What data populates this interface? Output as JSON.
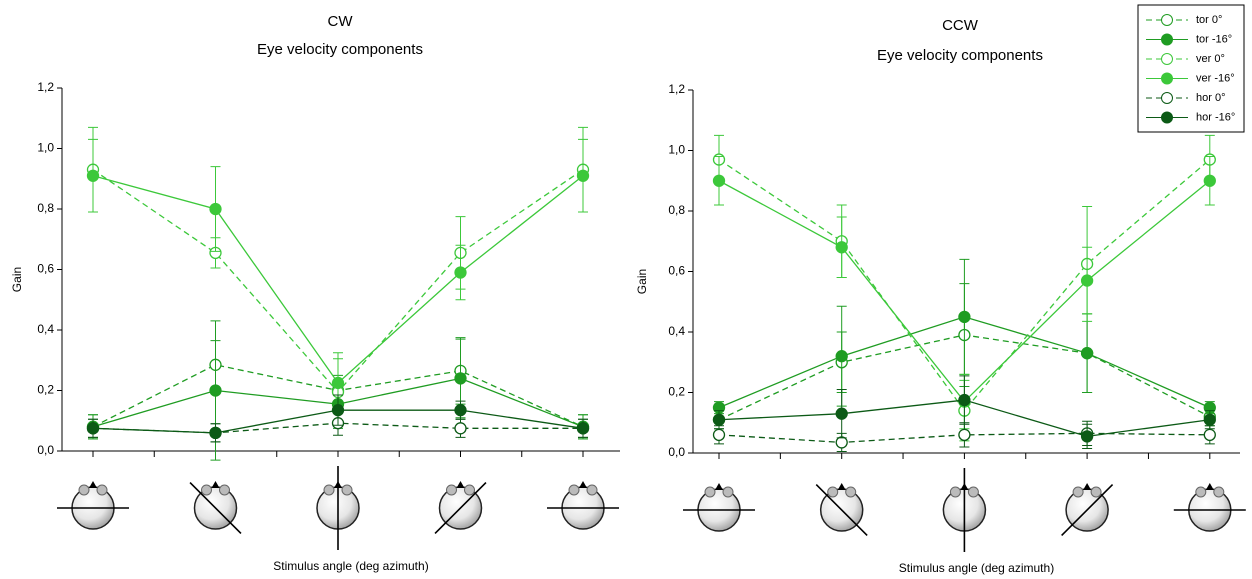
{
  "chart_data": [
    {
      "type": "line",
      "title": "CW",
      "subtitle": "Eye velocity components",
      "xlabel": "Stimulus angle (deg azimuth)",
      "ylabel": "Gain",
      "categories": [
        null,
        null,
        null,
        null,
        null
      ],
      "ylim": [
        0,
        1.2
      ],
      "yticks": [
        {
          "value": 0,
          "label": "0,0"
        },
        {
          "value": 0.2,
          "label": "0,2"
        },
        {
          "value": 0.4,
          "label": "0,4"
        },
        {
          "value": 0.6,
          "label": "0,6"
        },
        {
          "value": 0.8,
          "label": "0,8"
        },
        {
          "value": 1.0,
          "label": "1,0"
        },
        {
          "value": 1.2,
          "label": "1,2"
        }
      ],
      "series": [
        {
          "color": "#1f9c22",
          "marker": "open",
          "dashed": true,
          "values": [
            0.08,
            0.285,
            0.2,
            0.265,
            0.08
          ],
          "errors": [
            0.04,
            0.08,
            0.05,
            0.11,
            0.04
          ]
        },
        {
          "color": "#1f9c22",
          "marker": "filled",
          "dashed": false,
          "values": [
            0.08,
            0.2,
            0.155,
            0.24,
            0.08
          ],
          "errors": [
            0.04,
            0.23,
            0.08,
            0.13,
            0.04
          ]
        },
        {
          "color": "#3cc83a",
          "marker": "open",
          "dashed": true,
          "values": [
            0.93,
            0.655,
            0.195,
            0.655,
            0.93
          ],
          "errors": [
            0.14,
            0.05,
            0.11,
            0.12,
            0.14
          ]
        },
        {
          "color": "#3cc83a",
          "marker": "filled",
          "dashed": false,
          "values": [
            0.91,
            0.8,
            0.225,
            0.59,
            0.91
          ],
          "errors": [
            0.12,
            0.14,
            0.1,
            0.09,
            0.12
          ]
        },
        {
          "color": "#0c5a16",
          "marker": "open",
          "dashed": true,
          "values": [
            0.075,
            0.06,
            0.092,
            0.075,
            0.075
          ],
          "errors": [
            0.03,
            0.03,
            0.04,
            0.03,
            0.03
          ]
        },
        {
          "color": "#0c5a16",
          "marker": "filled",
          "dashed": false,
          "values": [
            0.075,
            0.06,
            0.135,
            0.135,
            0.075
          ],
          "errors": [
            0.03,
            0.03,
            0.05,
            0.03,
            0.03
          ]
        }
      ]
    },
    {
      "type": "line",
      "title": "CCW",
      "subtitle": "Eye velocity components",
      "xlabel": "Stimulus angle (deg azimuth)",
      "ylabel": "Gain",
      "categories": [
        null,
        null,
        null,
        null,
        null
      ],
      "ylim": [
        0,
        1.2
      ],
      "yticks": [
        {
          "value": 0,
          "label": "0,0"
        },
        {
          "value": 0.2,
          "label": "0,2"
        },
        {
          "value": 0.4,
          "label": "0,4"
        },
        {
          "value": 0.6,
          "label": "0,6"
        },
        {
          "value": 0.8,
          "label": "0,8"
        },
        {
          "value": 1.0,
          "label": "1,0"
        },
        {
          "value": 1.2,
          "label": "1,2"
        }
      ],
      "legend": "upper right",
      "series": [
        {
          "name": "tor 0°",
          "color": "#1f9c22",
          "marker": "open",
          "dashed": true,
          "values": [
            0.11,
            0.3,
            0.39,
            0.33,
            0.12
          ],
          "errors": [
            0.03,
            0.1,
            0.17,
            0.13,
            0.03
          ]
        },
        {
          "name": "tor -16°",
          "color": "#1f9c22",
          "marker": "filled",
          "dashed": false,
          "values": [
            0.15,
            0.32,
            0.45,
            0.33,
            0.15
          ],
          "errors": [
            0.02,
            0.165,
            0.19,
            0.13,
            0.02
          ]
        },
        {
          "name": "ver 0°",
          "color": "#3cc83a",
          "marker": "open",
          "dashed": true,
          "values": [
            0.97,
            0.7,
            0.14,
            0.625,
            0.97
          ],
          "errors": [
            0.08,
            0.12,
            0.1,
            0.19,
            0.08
          ]
        },
        {
          "name": "ver -16°",
          "color": "#3cc83a",
          "marker": "filled",
          "dashed": false,
          "values": [
            0.9,
            0.68,
            0.17,
            0.57,
            0.9
          ],
          "errors": [
            0.08,
            0.1,
            0.09,
            0.11,
            0.08
          ]
        },
        {
          "name": "hor 0°",
          "color": "#0c5a16",
          "marker": "open",
          "dashed": true,
          "values": [
            0.06,
            0.035,
            0.06,
            0.065,
            0.06
          ],
          "errors": [
            0.03,
            0.03,
            0.04,
            0.04,
            0.03
          ]
        },
        {
          "name": "hor -16°",
          "color": "#0c5a16",
          "marker": "filled",
          "dashed": false,
          "values": [
            0.11,
            0.13,
            0.175,
            0.055,
            0.11
          ],
          "errors": [
            0.03,
            0.08,
            0.08,
            0.04,
            0.03
          ]
        }
      ]
    }
  ]
}
